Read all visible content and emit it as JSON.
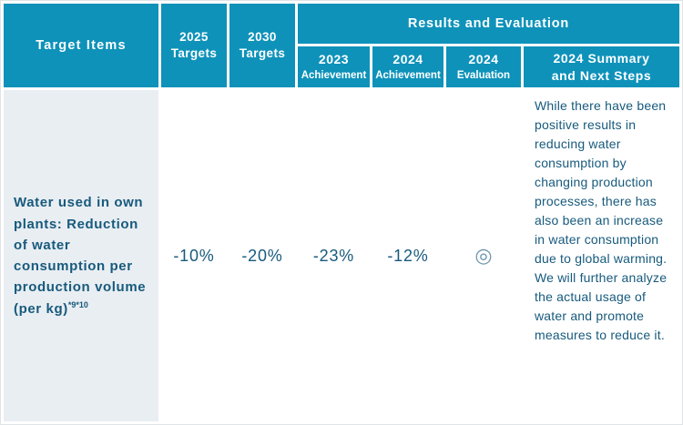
{
  "colors": {
    "header_bg": "#0e92ba",
    "header_text": "#ffffff",
    "text": "#175a7d",
    "target_cell_bg": "#e9eef2",
    "evaluation_mark_color": "#6d94ad"
  },
  "header": {
    "target_items": "Target Items",
    "targets_2025": "2025\nTargets",
    "targets_2030": "2030\nTargets",
    "results_group": "Results and Evaluation",
    "achievement_2023_year": "2023",
    "achievement_2023_label": "Achievement",
    "achievement_2024_year": "2024",
    "achievement_2024_label": "Achievement",
    "evaluation_2024_year": "2024",
    "evaluation_2024_label": "Evaluation",
    "summary": "2024 Summary\nand Next Steps"
  },
  "row": {
    "target_item": "Water used in own plants: Reduction of water consumption per production volume (per kg)",
    "target_item_footnote": "*9*10",
    "target_2025": "-10%",
    "target_2030": "-20%",
    "achievement_2023": "-23%",
    "achievement_2024": "-12%",
    "evaluation_2024": "◎",
    "summary": "While there have been positive results in reducing water consumption by changing production processes, there has also been an increase in water consumption due to global warming. We will further analyze the actual usage of water and promote measures to reduce it."
  }
}
